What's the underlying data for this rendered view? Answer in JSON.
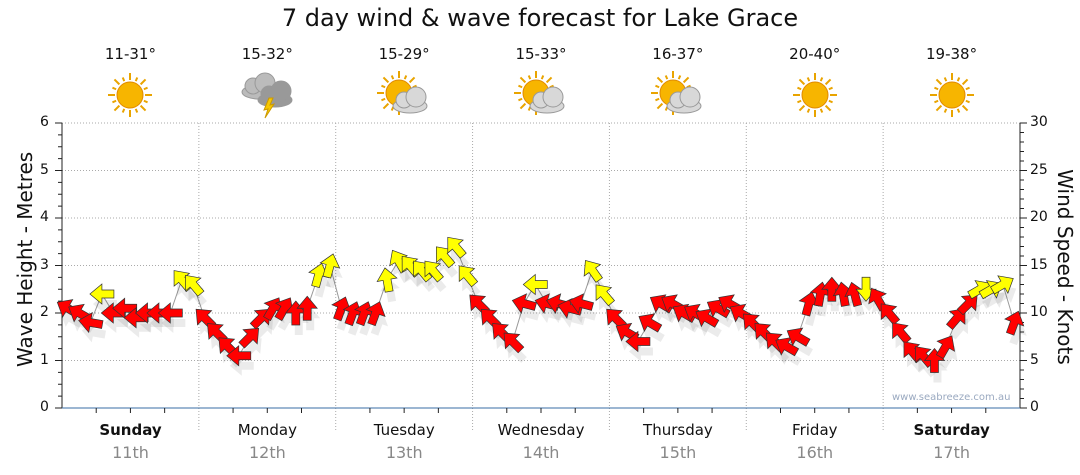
{
  "chart_data": {
    "type": "scatter",
    "title": "7 day wind & wave forecast for Lake Grace",
    "ylabel": "Wave Height - Metres",
    "y2label": "Wind Speed - Knots",
    "ylim": [
      0,
      6
    ],
    "y2lim": [
      0,
      30
    ],
    "yticks": [
      "0",
      "1",
      "2",
      "3",
      "4",
      "5",
      "6"
    ],
    "y2ticks": [
      "0",
      "5",
      "10",
      "15",
      "20",
      "25",
      "30"
    ],
    "grid": true,
    "days": [
      {
        "name": "Sunday",
        "date": "11th",
        "temp": "11-31°",
        "icon": "sunny-icon",
        "bold": true
      },
      {
        "name": "Monday",
        "date": "12th",
        "temp": "15-32°",
        "icon": "storm-cloud-icon",
        "bold": false
      },
      {
        "name": "Tuesday",
        "date": "13th",
        "temp": "15-29°",
        "icon": "partly-cloudy-icon",
        "bold": false
      },
      {
        "name": "Wednesday",
        "date": "14th",
        "temp": "15-33°",
        "icon": "partly-cloudy-icon",
        "bold": false
      },
      {
        "name": "Thursday",
        "date": "15th",
        "temp": "16-37°",
        "icon": "partly-cloudy-icon",
        "bold": false
      },
      {
        "name": "Friday",
        "date": "16th",
        "temp": "20-40°",
        "icon": "sunny-icon",
        "bold": false
      },
      {
        "name": "Saturday",
        "date": "17th",
        "temp": "19-38°",
        "icon": "sunny-icon",
        "bold": true
      }
    ],
    "wind_knots": [
      10.5,
      10,
      9,
      12,
      10,
      10.5,
      9.5,
      10,
      10,
      10,
      13.5,
      13,
      9.5,
      8,
      6.5,
      5.5,
      7.5,
      9.5,
      10.5,
      10.5,
      10,
      10.5,
      14,
      15,
      10.5,
      10,
      10,
      10,
      13.5,
      15.5,
      15,
      14.5,
      14.5,
      16,
      17,
      14,
      11,
      9.5,
      8,
      7,
      11,
      13,
      11,
      11,
      10.5,
      11,
      14.5,
      12,
      9.5,
      8,
      7,
      9,
      11,
      11,
      10,
      10,
      9.5,
      10.5,
      11,
      10,
      9,
      8,
      7,
      6.5,
      7.5,
      11,
      12,
      12.5,
      12,
      12,
      12.5,
      11.5,
      10,
      8,
      6,
      5.5,
      5,
      6.5,
      9.5,
      11,
      12.5,
      12.5,
      13,
      9
    ],
    "wind_arrow_dir": [
      300,
      300,
      280,
      270,
      270,
      270,
      270,
      270,
      270,
      270,
      320,
      320,
      315,
      315,
      315,
      270,
      45,
      45,
      30,
      30,
      0,
      0,
      15,
      15,
      20,
      20,
      20,
      20,
      350,
      330,
      320,
      320,
      320,
      320,
      320,
      320,
      315,
      315,
      315,
      315,
      285,
      270,
      285,
      285,
      285,
      285,
      325,
      320,
      315,
      300,
      270,
      300,
      300,
      300,
      300,
      300,
      300,
      300,
      300,
      300,
      315,
      315,
      315,
      300,
      300,
      15,
      10,
      0,
      350,
      345,
      180,
      330,
      320,
      320,
      320,
      320,
      0,
      30,
      40,
      45,
      60,
      60,
      60,
      20
    ],
    "wind_color_codes": "rrryrrrrrryyrrrrrrrrrryyrrrryyyyyyyyrrrrryrrrryyrrrrrrrrrrrrrrrrrrrrrryrrrrrrrrryyyr",
    "colors": {
      "r": "#ff0000",
      "y": "#ffff00"
    }
  },
  "watermark": "www.seabreeze.com.au"
}
